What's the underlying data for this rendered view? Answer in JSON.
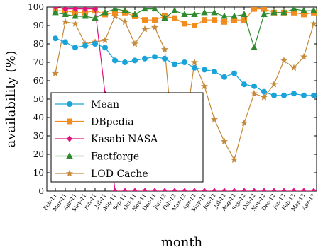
{
  "chart_data": {
    "type": "line",
    "xlabel": "month",
    "ylabel": "availability (%)",
    "ylim": [
      0,
      100
    ],
    "yticks": [
      0,
      10,
      20,
      30,
      40,
      50,
      60,
      70,
      80,
      90,
      100
    ],
    "grid": false,
    "legend_position": "lower-left",
    "categories": [
      "Feb-11",
      "Mar-11",
      "Apr-11",
      "May-11",
      "Jun-11",
      "Jul-11",
      "Aug-11",
      "Sep-11",
      "Oct-11",
      "Nov-11",
      "Dec-11",
      "Jan-12",
      "Feb-12",
      "Mar-12",
      "Apr-12",
      "May-12",
      "Jun-12",
      "Jul-12",
      "Aug-12",
      "Sep-12",
      "Oct-12",
      "Nov-12",
      "Dec-12",
      "Jan-13",
      "Feb-13",
      "Mar-13",
      "Apr-13"
    ],
    "series": [
      {
        "name": "Mean",
        "color": "#1aa3d9",
        "marker": "circle",
        "values": [
          83,
          81,
          78,
          79,
          80,
          78,
          71,
          70,
          71,
          72,
          73,
          72,
          69,
          70,
          67,
          66,
          65,
          62,
          64,
          58,
          57,
          54,
          52,
          52,
          53,
          52,
          52
        ]
      },
      {
        "name": "DBpedia",
        "color": "#f28c1f",
        "marker": "square",
        "values": [
          98,
          98,
          97,
          97,
          98,
          96,
          97,
          97,
          95,
          93,
          93,
          95,
          94,
          91,
          90,
          93,
          93,
          92,
          93,
          93,
          99,
          99,
          97,
          97,
          97,
          96,
          97
        ]
      },
      {
        "name": "Kasabi NASA",
        "color": "#e0127f",
        "marker": "diamond",
        "values": [
          100,
          99,
          99,
          99,
          99,
          53,
          0,
          0,
          0,
          0,
          0,
          0,
          0,
          0,
          0,
          0,
          0,
          0,
          0,
          0,
          0,
          0,
          0,
          0,
          0,
          0,
          0
        ]
      },
      {
        "name": "Factforge",
        "color": "#2f8a2f",
        "marker": "triangle",
        "values": [
          97,
          96,
          95,
          95,
          94,
          97,
          99,
          98,
          96,
          99,
          99,
          94,
          98,
          96,
          96,
          97,
          97,
          95,
          95,
          96,
          78,
          96,
          97,
          97,
          99,
          98,
          98
        ]
      },
      {
        "name": "LOD Cache",
        "color": "#c58a3a",
        "marker": "star",
        "values": [
          64,
          92,
          91,
          80,
          81,
          82,
          95,
          92,
          80,
          88,
          89,
          77,
          18,
          31,
          70,
          57,
          39,
          27,
          17,
          37,
          53,
          51,
          58,
          71,
          67,
          73,
          91
        ]
      }
    ]
  }
}
